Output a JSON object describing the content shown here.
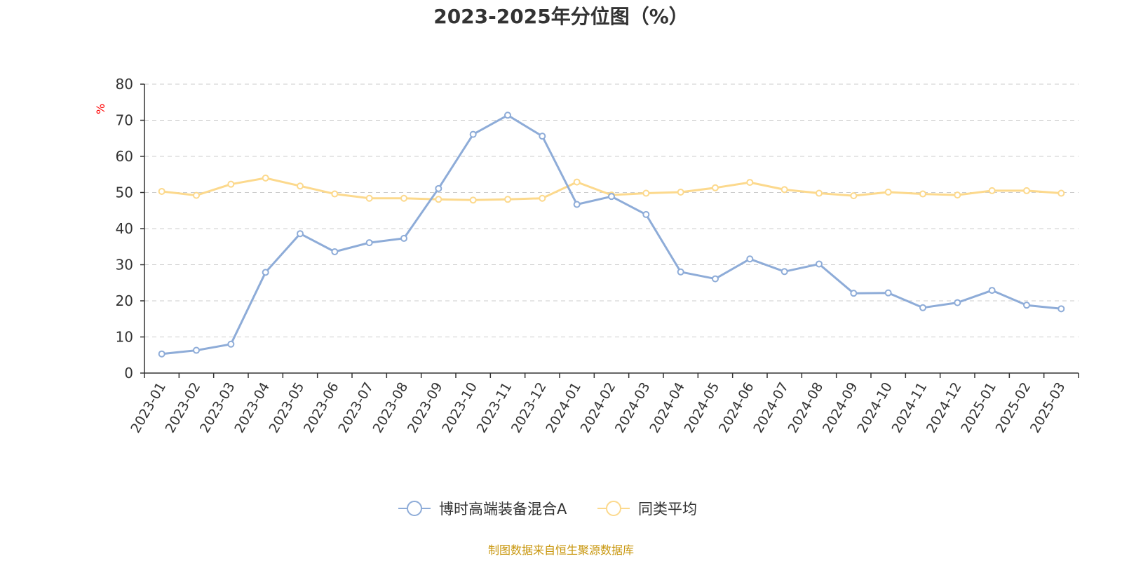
{
  "chart_data": {
    "type": "line",
    "title": "2023-2025年分位图（%）",
    "ylabel": "%",
    "ylim": [
      0,
      80
    ],
    "yticks": [
      0,
      10,
      20,
      30,
      40,
      50,
      60,
      70,
      80
    ],
    "categories": [
      "2023-01",
      "2023-02",
      "2023-03",
      "2023-04",
      "2023-05",
      "2023-06",
      "2023-07",
      "2023-08",
      "2023-09",
      "2023-10",
      "2023-11",
      "2023-12",
      "2024-01",
      "2024-02",
      "2024-03",
      "2024-04",
      "2024-05",
      "2024-06",
      "2024-07",
      "2024-08",
      "2024-09",
      "2024-10",
      "2024-11",
      "2024-12",
      "2025-01",
      "2025-02",
      "2025-03"
    ],
    "series": [
      {
        "name": "博时高端装备混合A",
        "color": "#8eacd8",
        "values": [
          5.3,
          6.3,
          8.0,
          27.9,
          38.6,
          33.6,
          36.1,
          37.3,
          51.1,
          66.1,
          71.4,
          65.6,
          46.7,
          48.9,
          43.9,
          28.0,
          26.1,
          31.6,
          28.1,
          30.2,
          22.1,
          22.2,
          18.1,
          19.5,
          22.9,
          18.8,
          17.8
        ]
      },
      {
        "name": "同类平均",
        "color": "#fcd98d",
        "values": [
          50.3,
          49.2,
          52.3,
          54.0,
          51.8,
          49.6,
          48.4,
          48.4,
          48.1,
          47.9,
          48.1,
          48.4,
          52.9,
          49.3,
          49.8,
          50.1,
          51.3,
          52.8,
          50.8,
          49.8,
          49.1,
          50.1,
          49.6,
          49.3,
          50.5,
          50.5,
          49.8
        ]
      }
    ],
    "grid": true,
    "legend_position": "bottom",
    "source_note": "制图数据来自恒生聚源数据库"
  }
}
